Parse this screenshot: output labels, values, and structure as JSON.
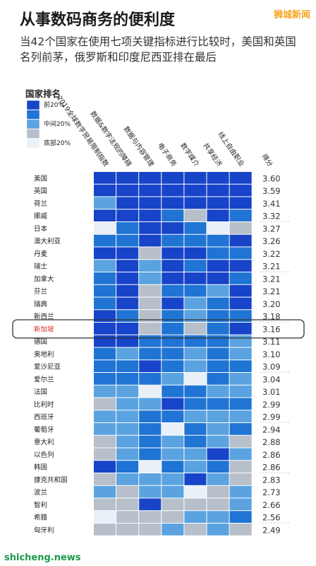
{
  "title": "从事数码商务的便利度",
  "brand": "狮城新闻",
  "subtitle": "当42个国家在使用七项关键指标进行比较时，美国和英国名列前茅，俄罗斯和印度尼西亚排在最后",
  "legend_title": "国家排名",
  "legend_labels": [
    "前20%",
    "中间20%",
    "底部20%"
  ],
  "watermark": "shicheng.news",
  "highlight_country": "新加坡",
  "colors": [
    "#1744c8",
    "#1f74d4",
    "#5aa3e0",
    "#b7bfca",
    "#eaf0f8"
  ],
  "chart_data": {
    "type": "heatmap",
    "columns": [
      "2019全球数字贸易限制指数",
      "数据&数字法规的障碍",
      "数据与内容管理",
      "电子商务",
      "数字媒介",
      "共享经济",
      "线上自由职业",
      "得分"
    ],
    "rows": [
      "美国",
      "英国",
      "荷兰",
      "挪威",
      "日本",
      "澳大利亚",
      "丹麦",
      "瑞士",
      "加拿大",
      "芬兰",
      "瑞典",
      "新西兰",
      "新加坡",
      "德国",
      "奥地利",
      "爱沙尼亚",
      "爱尔兰",
      "法国",
      "比利时",
      "西班牙",
      "葡萄牙",
      "意大利",
      "以色列",
      "韩国",
      "捷克共和国",
      "波兰",
      "智利",
      "希腊",
      "匈牙利"
    ],
    "scores": [
      "3.60",
      "3.59",
      "3.41",
      "3.32",
      "3.27",
      "3.26",
      "3.22",
      "3.21",
      "3.21",
      "3.21",
      "3.20",
      "3.18",
      "3.16",
      "3.11",
      "3.10",
      "3.09",
      "3.04",
      "3.01",
      "2.99",
      "2.99",
      "2.94",
      "2.88",
      "2.86",
      "2.86",
      "2.83",
      "2.73",
      "2.66",
      "2.56",
      "2.49"
    ],
    "levels": [
      [
        1,
        1,
        1,
        1,
        1,
        1,
        1
      ],
      [
        1,
        1,
        1,
        1,
        1,
        1,
        1
      ],
      [
        3,
        1,
        1,
        1,
        1,
        1,
        1
      ],
      [
        1,
        1,
        1,
        2,
        4,
        1,
        2
      ],
      [
        5,
        2,
        1,
        1,
        2,
        5,
        4
      ],
      [
        2,
        2,
        1,
        2,
        2,
        2,
        1
      ],
      [
        1,
        1,
        4,
        1,
        1,
        2,
        2
      ],
      [
        3,
        1,
        3,
        1,
        2,
        1,
        1
      ],
      [
        2,
        1,
        3,
        1,
        1,
        1,
        2
      ],
      [
        2,
        1,
        4,
        2,
        2,
        3,
        1
      ],
      [
        2,
        1,
        4,
        1,
        3,
        2,
        1
      ],
      [
        1,
        2,
        4,
        2,
        3,
        2,
        2
      ],
      [
        1,
        1,
        4,
        2,
        4,
        2,
        1
      ],
      [
        1,
        1,
        2,
        2,
        2,
        2,
        3
      ],
      [
        2,
        3,
        2,
        2,
        3,
        2,
        3
      ],
      [
        2,
        2,
        1,
        2,
        3,
        2,
        2
      ],
      [
        2,
        2,
        2,
        3,
        5,
        2,
        3
      ],
      [
        3,
        3,
        5,
        2,
        2,
        3,
        3
      ],
      [
        4,
        3,
        3,
        1,
        2,
        2,
        2
      ],
      [
        3,
        3,
        2,
        2,
        3,
        3,
        3
      ],
      [
        3,
        3,
        2,
        5,
        2,
        3,
        2
      ],
      [
        4,
        3,
        2,
        3,
        2,
        3,
        4
      ],
      [
        4,
        3,
        2,
        3,
        3,
        1,
        3
      ],
      [
        1,
        2,
        5,
        2,
        3,
        2,
        4
      ],
      [
        4,
        3,
        3,
        3,
        1,
        3,
        4
      ],
      [
        3,
        4,
        3,
        3,
        5,
        4,
        3
      ],
      [
        4,
        4,
        1,
        4,
        4,
        4,
        3
      ],
      [
        5,
        4,
        4,
        4,
        3,
        3,
        2
      ],
      [
        4,
        4,
        4,
        3,
        4,
        3,
        4
      ]
    ]
  }
}
